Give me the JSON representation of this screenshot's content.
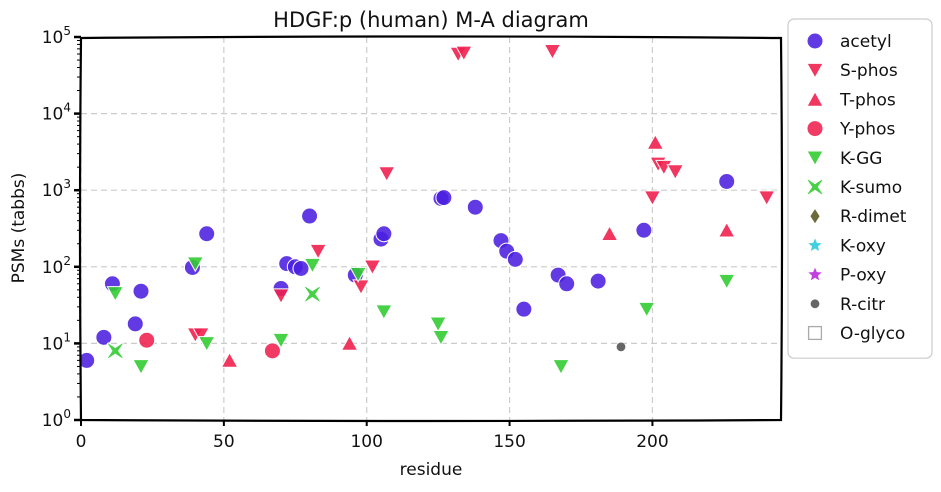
{
  "chart_data": {
    "type": "scatter",
    "title": "HDGF:p (human) M-A diagram",
    "xlabel": "residue",
    "ylabel": "PSMs (tabbs)",
    "xlim": [
      0,
      245
    ],
    "ylim": [
      1,
      100000
    ],
    "yscale": "log",
    "x_ticks": [
      "0",
      "50",
      "100",
      "150",
      "200"
    ],
    "y_ticks": [
      "10^0",
      "10^1",
      "10^2",
      "10^3",
      "10^4",
      "10^5"
    ],
    "grid": true,
    "legend_position": "right",
    "series": [
      {
        "name": "acetyl",
        "marker": "circle",
        "color": "#4b1fe0",
        "points": [
          [
            2,
            6
          ],
          [
            8,
            12
          ],
          [
            11,
            60
          ],
          [
            19,
            18
          ],
          [
            21,
            48
          ],
          [
            39,
            98
          ],
          [
            44,
            270
          ],
          [
            70,
            52
          ],
          [
            72,
            110
          ],
          [
            75,
            100
          ],
          [
            77,
            95
          ],
          [
            80,
            460
          ],
          [
            96,
            78
          ],
          [
            105,
            230
          ],
          [
            106,
            270
          ],
          [
            126,
            780
          ],
          [
            127,
            800
          ],
          [
            138,
            600
          ],
          [
            147,
            220
          ],
          [
            149,
            160
          ],
          [
            152,
            125
          ],
          [
            155,
            28
          ],
          [
            167,
            78
          ],
          [
            170,
            60
          ],
          [
            181,
            65
          ],
          [
            197,
            300
          ],
          [
            226,
            1300
          ]
        ]
      },
      {
        "name": "S-phos",
        "marker": "triangle-down",
        "color": "#f0204f",
        "points": [
          [
            40,
            13
          ],
          [
            42,
            13
          ],
          [
            70,
            42
          ],
          [
            83,
            160
          ],
          [
            98,
            55
          ],
          [
            102,
            100
          ],
          [
            107,
            1650
          ],
          [
            132,
            60000
          ],
          [
            134,
            62000
          ],
          [
            165,
            65000
          ],
          [
            200,
            800
          ],
          [
            202,
            2200
          ],
          [
            204,
            2000
          ],
          [
            208,
            1750
          ],
          [
            240,
            800
          ]
        ]
      },
      {
        "name": "T-phos",
        "marker": "triangle-up",
        "color": "#f0204f",
        "points": [
          [
            52,
            6
          ],
          [
            94,
            10
          ],
          [
            185,
            270
          ],
          [
            201,
            4200
          ],
          [
            226,
            300
          ]
        ]
      },
      {
        "name": "Y-phos",
        "marker": "circle",
        "color": "#f0204f",
        "points": [
          [
            23,
            11
          ],
          [
            67,
            8
          ]
        ]
      },
      {
        "name": "K-GG",
        "marker": "triangle-down",
        "color": "#33cc33",
        "points": [
          [
            12,
            45
          ],
          [
            21,
            5
          ],
          [
            40,
            110
          ],
          [
            44,
            10
          ],
          [
            70,
            11
          ],
          [
            81,
            105
          ],
          [
            97,
            80
          ],
          [
            106,
            26
          ],
          [
            125,
            18
          ],
          [
            126,
            12
          ],
          [
            168,
            5
          ],
          [
            198,
            28
          ],
          [
            226,
            65
          ]
        ]
      },
      {
        "name": "K-sumo",
        "marker": "x",
        "color": "#33cc33",
        "points": [
          [
            12,
            8
          ],
          [
            81,
            44
          ]
        ]
      },
      {
        "name": "R-dimet",
        "marker": "diamond",
        "color": "#6b6b3a",
        "points": []
      },
      {
        "name": "K-oxy",
        "marker": "star",
        "color": "#40d0e0",
        "points": []
      },
      {
        "name": "P-oxy",
        "marker": "star",
        "color": "#c040e0",
        "points": []
      },
      {
        "name": "R-citr",
        "marker": "dot",
        "color": "#666666",
        "points": [
          [
            189,
            9
          ]
        ]
      },
      {
        "name": "O-glyco",
        "marker": "square-open",
        "color": "#aaaaaa",
        "points": []
      }
    ]
  }
}
